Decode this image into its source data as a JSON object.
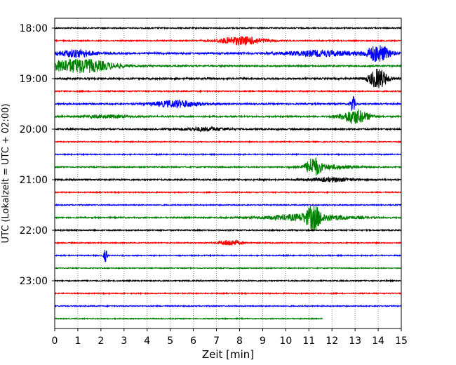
{
  "chart_data": {
    "type": "line",
    "title": "",
    "xlabel": "Zeit  [min]",
    "ylabel": "UTC (Lokalzeit = UTC + 02:00)",
    "xlim": [
      0,
      15
    ],
    "x_ticks": [
      "0",
      "1",
      "2",
      "3",
      "4",
      "5",
      "6",
      "7",
      "8",
      "9",
      "10",
      "11",
      "12",
      "13",
      "14",
      "15"
    ],
    "y_tick_labels": [
      "18:00",
      "19:00",
      "20:00",
      "21:00",
      "22:00",
      "23:00"
    ],
    "grid": "vertical dotted",
    "trace_colors": [
      "#000000",
      "#ff0000",
      "#0000ff",
      "#008000"
    ],
    "traces": [
      {
        "start": "18:00",
        "noise": 0.8,
        "x_end": 15,
        "bursts": []
      },
      {
        "start": "18:15",
        "noise": 0.8,
        "x_end": 15,
        "bursts": [
          {
            "t": 8.1,
            "amp": 6,
            "width": 1.0
          }
        ]
      },
      {
        "start": "18:30",
        "noise": 1.2,
        "x_end": 15,
        "bursts": [
          {
            "t": 0.9,
            "amp": 5,
            "width": 0.8
          },
          {
            "t": 11.5,
            "amp": 4,
            "width": 1.5
          },
          {
            "t": 14.0,
            "amp": 12,
            "width": 0.5
          }
        ]
      },
      {
        "start": "18:45",
        "noise": 1.0,
        "x_end": 15,
        "bursts": [
          {
            "t": 1.0,
            "amp": 10,
            "width": 1.5
          }
        ]
      },
      {
        "start": "19:00",
        "noise": 1.2,
        "x_end": 15,
        "bursts": [
          {
            "t": 14.0,
            "amp": 14,
            "width": 0.4
          }
        ]
      },
      {
        "start": "19:15",
        "noise": 0.8,
        "x_end": 15,
        "bursts": []
      },
      {
        "start": "19:30",
        "noise": 1.0,
        "x_end": 15,
        "bursts": [
          {
            "t": 5.3,
            "amp": 5,
            "width": 1.0
          },
          {
            "t": 12.9,
            "amp": 12,
            "width": 0.1
          }
        ]
      },
      {
        "start": "19:45",
        "noise": 1.0,
        "x_end": 15,
        "bursts": [
          {
            "t": 13.0,
            "amp": 10,
            "width": 0.6
          },
          {
            "t": 2.2,
            "amp": 2,
            "width": 1.0
          }
        ]
      },
      {
        "start": "20:00",
        "noise": 1.0,
        "x_end": 15,
        "bursts": [
          {
            "t": 6.5,
            "amp": 2.5,
            "width": 1.0
          }
        ]
      },
      {
        "start": "20:15",
        "noise": 0.7,
        "x_end": 15,
        "bursts": []
      },
      {
        "start": "20:30",
        "noise": 0.7,
        "x_end": 15,
        "bursts": []
      },
      {
        "start": "20:45",
        "noise": 0.8,
        "x_end": 15,
        "bursts": [
          {
            "t": 11.2,
            "amp": 12,
            "width": 0.3
          },
          {
            "t": 11.8,
            "amp": 3,
            "width": 1.2
          }
        ]
      },
      {
        "start": "21:00",
        "noise": 1.0,
        "x_end": 15,
        "bursts": [
          {
            "t": 12.0,
            "amp": 2.5,
            "width": 1.0
          }
        ]
      },
      {
        "start": "21:15",
        "noise": 0.7,
        "x_end": 15,
        "bursts": []
      },
      {
        "start": "21:30",
        "noise": 0.7,
        "x_end": 15,
        "bursts": []
      },
      {
        "start": "21:45",
        "noise": 0.9,
        "x_end": 15,
        "bursts": [
          {
            "t": 11.2,
            "amp": 14,
            "width": 0.3
          },
          {
            "t": 11.0,
            "amp": 5,
            "width": 1.8
          }
        ]
      },
      {
        "start": "22:00",
        "noise": 0.8,
        "x_end": 15,
        "bursts": []
      },
      {
        "start": "22:15",
        "noise": 0.7,
        "x_end": 15,
        "bursts": [
          {
            "t": 7.6,
            "amp": 4,
            "width": 0.5
          }
        ]
      },
      {
        "start": "22:30",
        "noise": 0.7,
        "x_end": 15,
        "bursts": [
          {
            "t": 2.2,
            "amp": 9,
            "width": 0.08
          }
        ]
      },
      {
        "start": "22:45",
        "noise": 0.6,
        "x_end": 15,
        "bursts": []
      },
      {
        "start": "23:00",
        "noise": 0.8,
        "x_end": 15,
        "bursts": []
      },
      {
        "start": "23:15",
        "noise": 0.7,
        "x_end": 15,
        "bursts": []
      },
      {
        "start": "23:30",
        "noise": 0.7,
        "x_end": 15,
        "bursts": []
      },
      {
        "start": "23:45",
        "noise": 0.6,
        "x_end": 11.6,
        "bursts": []
      }
    ]
  }
}
